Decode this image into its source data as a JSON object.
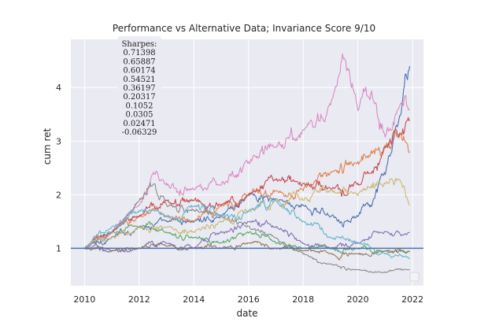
{
  "chart_data": {
    "type": "line",
    "title": "Performance vs Alternative Data; Invariance Score 9/10",
    "xlabel": "date",
    "ylabel": "cum ret",
    "xlim": [
      2009.5,
      2022.4
    ],
    "ylim": [
      0.3,
      4.9
    ],
    "x_ticks": [
      2010,
      2012,
      2014,
      2016,
      2018,
      2020,
      2022
    ],
    "y_ticks": [
      1,
      2,
      3,
      4
    ],
    "reference_line": {
      "y": 1,
      "color": "#4C72B0"
    },
    "grid": true,
    "background": "#EAEAF2",
    "legend": {
      "placement": "bottom-right",
      "entries": []
    },
    "annotation": {
      "header": "Sharpes:",
      "values": [
        "0.71398",
        "0.65887",
        "0.60174",
        "0.54521",
        "0.36197",
        "0.20317",
        "0.1052",
        "0.0305",
        "0.02471",
        "-0.06329"
      ]
    },
    "series": [
      {
        "color": "#4C72B0",
        "x": [
          2010.0,
          2011.0,
          2012.0,
          2013.0,
          2014.0,
          2015.0,
          2016.0,
          2017.0,
          2018.0,
          2019.0,
          2020.0,
          2020.5,
          2021.0,
          2021.5,
          2021.9
        ],
        "y": [
          1.0,
          1.2,
          1.4,
          1.5,
          1.5,
          1.6,
          2.0,
          1.9,
          1.8,
          1.6,
          1.6,
          1.8,
          2.4,
          3.4,
          4.4
        ]
      },
      {
        "color": "#DD8452",
        "x": [
          2010.0,
          2011.0,
          2012.0,
          2013.0,
          2014.0,
          2015.0,
          2016.0,
          2017.0,
          2018.0,
          2019.0,
          2020.0,
          2020.5,
          2021.0,
          2021.5,
          2021.9
        ],
        "y": [
          1.0,
          1.3,
          1.6,
          1.6,
          1.5,
          1.8,
          2.0,
          2.1,
          2.1,
          2.4,
          2.6,
          2.8,
          2.9,
          3.1,
          2.8
        ]
      },
      {
        "color": "#55A868",
        "x": [
          2010.0,
          2011.0,
          2012.0,
          2013.0,
          2014.0,
          2015.0,
          2016.0,
          2017.0,
          2018.0,
          2019.0,
          2020.0,
          2021.0,
          2021.9
        ],
        "y": [
          1.0,
          1.3,
          1.4,
          1.3,
          1.2,
          1.1,
          1.3,
          1.1,
          1.0,
          1.0,
          1.0,
          0.95,
          0.95
        ]
      },
      {
        "color": "#C44E52",
        "x": [
          2010.0,
          2011.0,
          2012.0,
          2013.0,
          2014.0,
          2015.0,
          2016.0,
          2017.0,
          2018.0,
          2019.0,
          2020.0,
          2020.5,
          2021.0,
          2021.5,
          2021.9
        ],
        "y": [
          1.0,
          1.3,
          1.6,
          1.9,
          1.9,
          1.8,
          2.0,
          2.3,
          2.2,
          2.1,
          2.2,
          2.4,
          2.9,
          3.1,
          3.4
        ]
      },
      {
        "color": "#8172B3",
        "x": [
          2010.0,
          2011.0,
          2012.0,
          2013.0,
          2014.0,
          2015.0,
          2016.0,
          2017.0,
          2018.0,
          2019.0,
          2020.0,
          2021.0,
          2021.9
        ],
        "y": [
          1.0,
          0.95,
          1.0,
          1.1,
          1.0,
          1.3,
          1.5,
          1.4,
          1.1,
          1.0,
          1.1,
          1.3,
          1.3
        ]
      },
      {
        "color": "#937860",
        "x": [
          2010.0,
          2011.0,
          2012.0,
          2013.0,
          2014.0,
          2015.0,
          2016.0,
          2017.0,
          2018.0,
          2019.0,
          2020.0,
          2021.0,
          2021.9
        ],
        "y": [
          1.0,
          0.95,
          1.0,
          1.05,
          1.0,
          1.0,
          1.1,
          1.0,
          0.95,
          0.9,
          0.9,
          0.95,
          0.95
        ]
      },
      {
        "color": "#DA8BC3",
        "x": [
          2010.0,
          2011.0,
          2012.0,
          2012.5,
          2013.0,
          2014.0,
          2015.0,
          2016.0,
          2017.0,
          2018.0,
          2019.0,
          2019.5,
          2020.0,
          2020.5,
          2021.0,
          2021.5,
          2021.9
        ],
        "y": [
          1.0,
          1.3,
          1.8,
          2.4,
          2.2,
          2.1,
          2.2,
          2.6,
          2.9,
          3.2,
          3.7,
          4.6,
          3.6,
          3.9,
          3.1,
          3.6,
          3.6
        ]
      },
      {
        "color": "#8C8C8C",
        "x": [
          2010.0,
          2011.0,
          2012.0,
          2012.4,
          2013.0,
          2014.0,
          2015.0,
          2016.0,
          2017.0,
          2018.0,
          2019.0,
          2020.0,
          2021.0,
          2021.9
        ],
        "y": [
          1.0,
          1.3,
          1.9,
          2.2,
          1.8,
          1.7,
          1.6,
          1.4,
          1.2,
          0.9,
          0.7,
          0.6,
          0.55,
          0.6
        ]
      },
      {
        "color": "#CCB974",
        "x": [
          2010.0,
          2011.0,
          2012.0,
          2013.0,
          2014.0,
          2015.0,
          2016.0,
          2017.0,
          2018.0,
          2019.0,
          2020.0,
          2021.0,
          2021.5,
          2021.9
        ],
        "y": [
          1.0,
          1.2,
          1.4,
          1.4,
          1.3,
          1.5,
          1.7,
          1.9,
          1.9,
          2.1,
          2.0,
          2.2,
          2.3,
          1.8
        ]
      },
      {
        "color": "#64B5CD",
        "x": [
          2010.0,
          2011.0,
          2012.0,
          2013.0,
          2014.0,
          2015.0,
          2016.0,
          2017.0,
          2018.0,
          2019.0,
          2020.0,
          2021.0,
          2021.9
        ],
        "y": [
          1.0,
          1.4,
          1.7,
          1.6,
          1.8,
          1.6,
          1.7,
          1.9,
          1.5,
          1.2,
          1.1,
          0.9,
          0.8
        ]
      }
    ]
  }
}
